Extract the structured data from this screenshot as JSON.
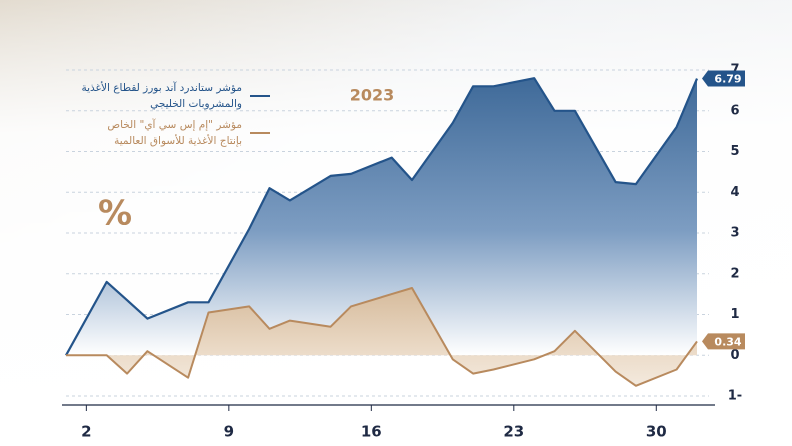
{
  "chart_data": {
    "type": "area",
    "subtitle": "2023",
    "y_label": "%",
    "x": [
      1,
      3,
      4,
      5,
      7,
      8,
      10,
      11,
      12,
      14,
      15,
      17,
      18,
      20,
      21,
      22,
      24,
      25,
      26,
      28,
      29,
      31,
      32
    ],
    "series": [
      {
        "name": "مؤشر ستاندرد آند بورز لقطاع الأغذية والمشروبات الخليجي",
        "color": "#24548a",
        "values": [
          0.0,
          1.8,
          1.35,
          0.9,
          1.3,
          1.3,
          3.1,
          4.1,
          3.8,
          4.4,
          4.45,
          4.85,
          4.3,
          5.7,
          6.6,
          6.6,
          6.8,
          6.0,
          6.0,
          4.25,
          4.2,
          5.6,
          6.79
        ]
      },
      {
        "name": "مؤشر \"إم إس سي آي\" الخاص بإنتاج الأغذية للأسواق العالمية",
        "color": "#b88a5e",
        "values": [
          0.0,
          0.0,
          -0.45,
          0.1,
          -0.55,
          1.05,
          1.2,
          0.65,
          0.85,
          0.7,
          1.2,
          1.5,
          1.65,
          -0.1,
          -0.45,
          -0.35,
          -0.1,
          0.1,
          0.6,
          -0.4,
          -0.75,
          -0.35,
          0.34
        ]
      }
    ],
    "xlim": [
      1,
      32
    ],
    "xticks": [
      2,
      9,
      16,
      23,
      30
    ],
    "ylim": [
      -1,
      7
    ],
    "yticks": [
      {
        "value": -1,
        "label": "1-"
      },
      0,
      1,
      2,
      3,
      4,
      5,
      6,
      7
    ],
    "grid": true
  }
}
